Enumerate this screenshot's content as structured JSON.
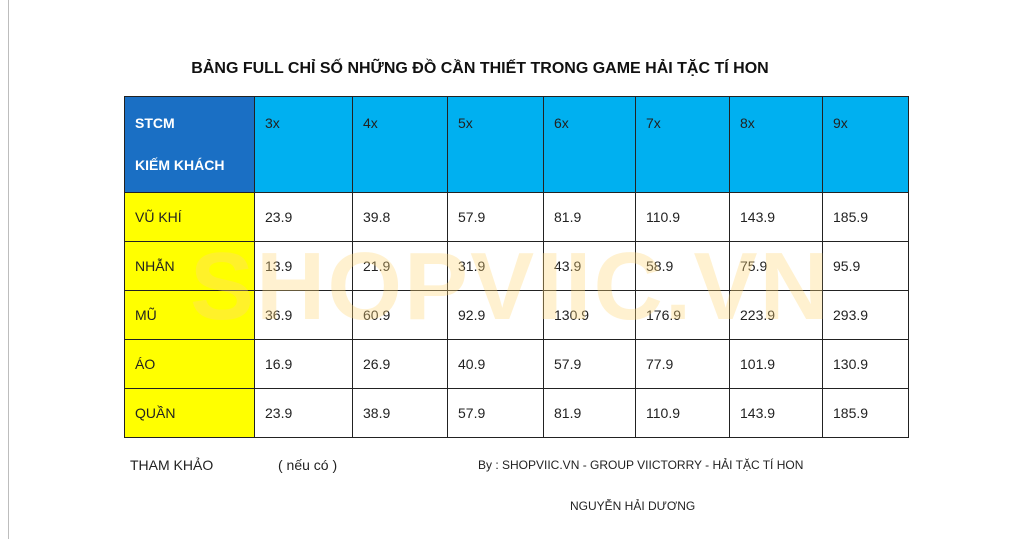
{
  "title": "BẢNG FULL CHỈ SỐ NHỮNG ĐỒ CẦN THIẾT TRONG GAME HẢI TẶC TÍ HON",
  "watermark": "SHOPVIIC.VN",
  "table": {
    "corner": [
      "STCM",
      "KIẾM KHÁCH"
    ],
    "columns": [
      "3x",
      "4x",
      "5x",
      "6x",
      "7x",
      "8x",
      "9x"
    ],
    "rows": [
      {
        "name": "VŨ KHÍ",
        "values": [
          23.9,
          39.8,
          57.9,
          81.9,
          110.9,
          143.9,
          185.9
        ]
      },
      {
        "name": "NHẪN",
        "values": [
          13.9,
          21.9,
          31.9,
          43.9,
          58.9,
          75.9,
          95.9
        ]
      },
      {
        "name": "MŨ",
        "values": [
          36.9,
          60.9,
          92.9,
          130.9,
          176.9,
          223.9,
          293.9
        ]
      },
      {
        "name": "ÁO",
        "values": [
          16.9,
          26.9,
          40.9,
          57.9,
          77.9,
          101.9,
          130.9
        ]
      },
      {
        "name": "QUẦN",
        "values": [
          23.9,
          38.9,
          57.9,
          81.9,
          110.9,
          143.9,
          185.9
        ]
      }
    ]
  },
  "footer": {
    "reference": "THAM KHẢO",
    "note": "( nếu có )",
    "credit": "By : SHOPVIIC.VN -  GROUP VIICTORRY - HẢI TẶC TÍ HON",
    "author": "NGUYỄN HẢI DƯƠNG"
  }
}
